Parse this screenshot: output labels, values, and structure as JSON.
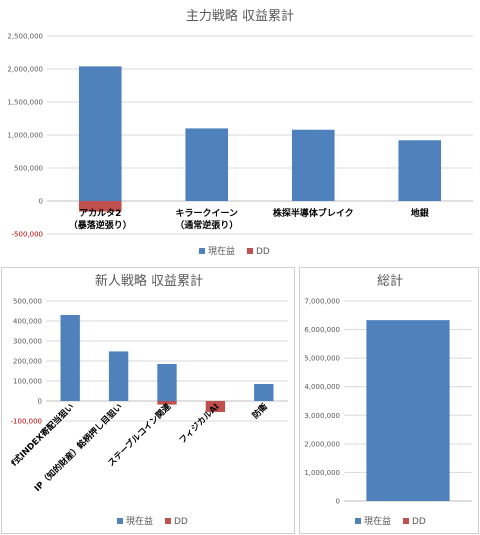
{
  "colors": {
    "current": "#4f81bd",
    "dd": "#c0504d",
    "grid": "#d9d9d9"
  },
  "chart_data": [
    {
      "type": "bar",
      "title": "主力戦略 収益累計",
      "categories": [
        [
          "アカルタ2",
          "（暴落逆張り）"
        ],
        [
          "キラークイーン",
          "（通常逆張り）"
        ],
        [
          "株探半導体ブレイク"
        ],
        [
          "地銀"
        ]
      ],
      "series": [
        {
          "name": "現在益",
          "values": [
            2040000,
            1100000,
            1080000,
            920000
          ]
        },
        {
          "name": "DD",
          "values": [
            -160000,
            0,
            0,
            0
          ]
        }
      ],
      "yticks": [
        "-500,000",
        "0",
        "500,000",
        "1,000,000",
        "1,500,000",
        "2,000,000",
        "2,500,000"
      ],
      "ylim": [
        -500000,
        2500000
      ],
      "grid": true,
      "legend": "bottom",
      "legend_labels": [
        "現在益",
        "DD"
      ]
    },
    {
      "type": "bar",
      "title": "新人戦略 収益累計",
      "categories": [
        "f式INDEX寄配当狙い",
        "IP（知的財産）銘柄押し目狙い",
        "ステーブルコイン関連",
        "フィジカルAI",
        "防衛"
      ],
      "series": [
        {
          "name": "現在益",
          "values": [
            430000,
            248000,
            185000,
            0,
            85000
          ]
        },
        {
          "name": "DD",
          "values": [
            0,
            0,
            -18000,
            -55000,
            0
          ]
        }
      ],
      "yticks": [
        "-100,000",
        "0",
        "100,000",
        "200,000",
        "300,000",
        "400,000",
        "500,000"
      ],
      "ylim": [
        -100000,
        500000
      ],
      "grid": true,
      "legend": "bottom",
      "legend_labels": [
        "現在益",
        "DD"
      ]
    },
    {
      "type": "bar",
      "title": "総計",
      "categories": [
        ""
      ],
      "series": [
        {
          "name": "現在益",
          "values": [
            6330000
          ]
        },
        {
          "name": "DD",
          "values": [
            0
          ]
        }
      ],
      "yticks": [
        "0",
        "1,000,000",
        "2,000,000",
        "3,000,000",
        "4,000,000",
        "5,000,000",
        "6,000,000",
        "7,000,000"
      ],
      "ylim": [
        0,
        7000000
      ],
      "grid": true,
      "legend": "bottom",
      "legend_labels": [
        "現在益",
        "DD"
      ]
    }
  ]
}
